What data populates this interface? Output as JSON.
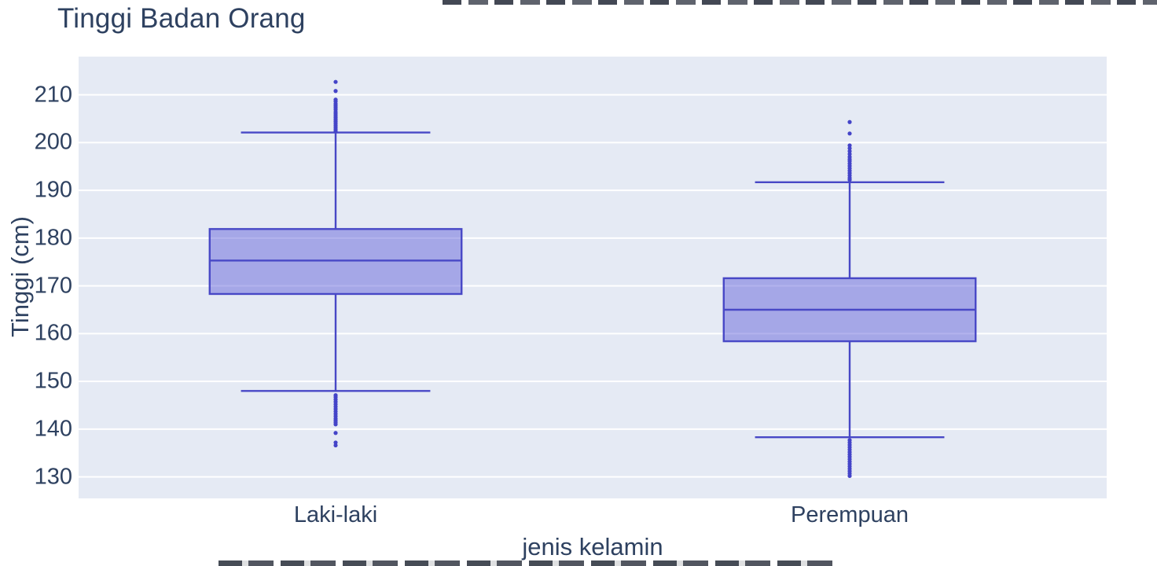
{
  "colors": {
    "text": "#2e4160",
    "page_bg": "#ffffff",
    "plot_bg": "#e5eaf4",
    "grid": "#ffffff",
    "box_line": "#4848c6",
    "box_fill": "rgba(86,86,214,0.45)",
    "outlier": "#4444c8"
  },
  "chart_data": {
    "type": "box",
    "title": "Tinggi Badan Orang",
    "xlabel": "jenis kelamin",
    "ylabel": "Tinggi (cm)",
    "categories": [
      "Laki-laki",
      "Perempuan"
    ],
    "yticks": [
      130,
      140,
      150,
      160,
      170,
      180,
      190,
      200,
      210
    ],
    "ylim": [
      125.5,
      218
    ],
    "grid": true,
    "legend": "none",
    "category_centers": [
      0.25,
      0.75
    ],
    "box_width_frac": 0.245,
    "cap_width_frac": 0.123,
    "series": [
      {
        "name": "Laki-laki",
        "lower_whisker": 148.0,
        "q1": 168.3,
        "median": 175.3,
        "q3": 181.9,
        "upper_whisker": 202.1,
        "outliers_upper": [
          212.7,
          210.8,
          209.0,
          208.6,
          208.1,
          207.7,
          207.3,
          206.9,
          206.4,
          206.0,
          205.6,
          205.2,
          204.8,
          204.4,
          204.0,
          203.6,
          203.2,
          202.8,
          202.4
        ],
        "outliers_lower": [
          147.1,
          146.7,
          146.2,
          145.7,
          145.2,
          144.7,
          144.2,
          143.7,
          143.2,
          142.7,
          142.2,
          141.8,
          141.4,
          141.0,
          139.2,
          137.2,
          136.6
        ]
      },
      {
        "name": "Perempuan",
        "lower_whisker": 138.3,
        "q1": 158.4,
        "median": 165.0,
        "q3": 171.6,
        "upper_whisker": 191.7,
        "outliers_upper": [
          204.3,
          201.9,
          199.4,
          198.8,
          198.2,
          197.6,
          197.0,
          196.5,
          196.1,
          195.6,
          195.1,
          194.6,
          194.1,
          193.6,
          193.1,
          192.6,
          192.2
        ],
        "outliers_lower": [
          137.7,
          137.2,
          136.7,
          136.2,
          135.7,
          135.2,
          134.7,
          134.2,
          133.7,
          133.2,
          132.7,
          132.2,
          131.7,
          131.2,
          130.7,
          130.2
        ]
      }
    ]
  }
}
